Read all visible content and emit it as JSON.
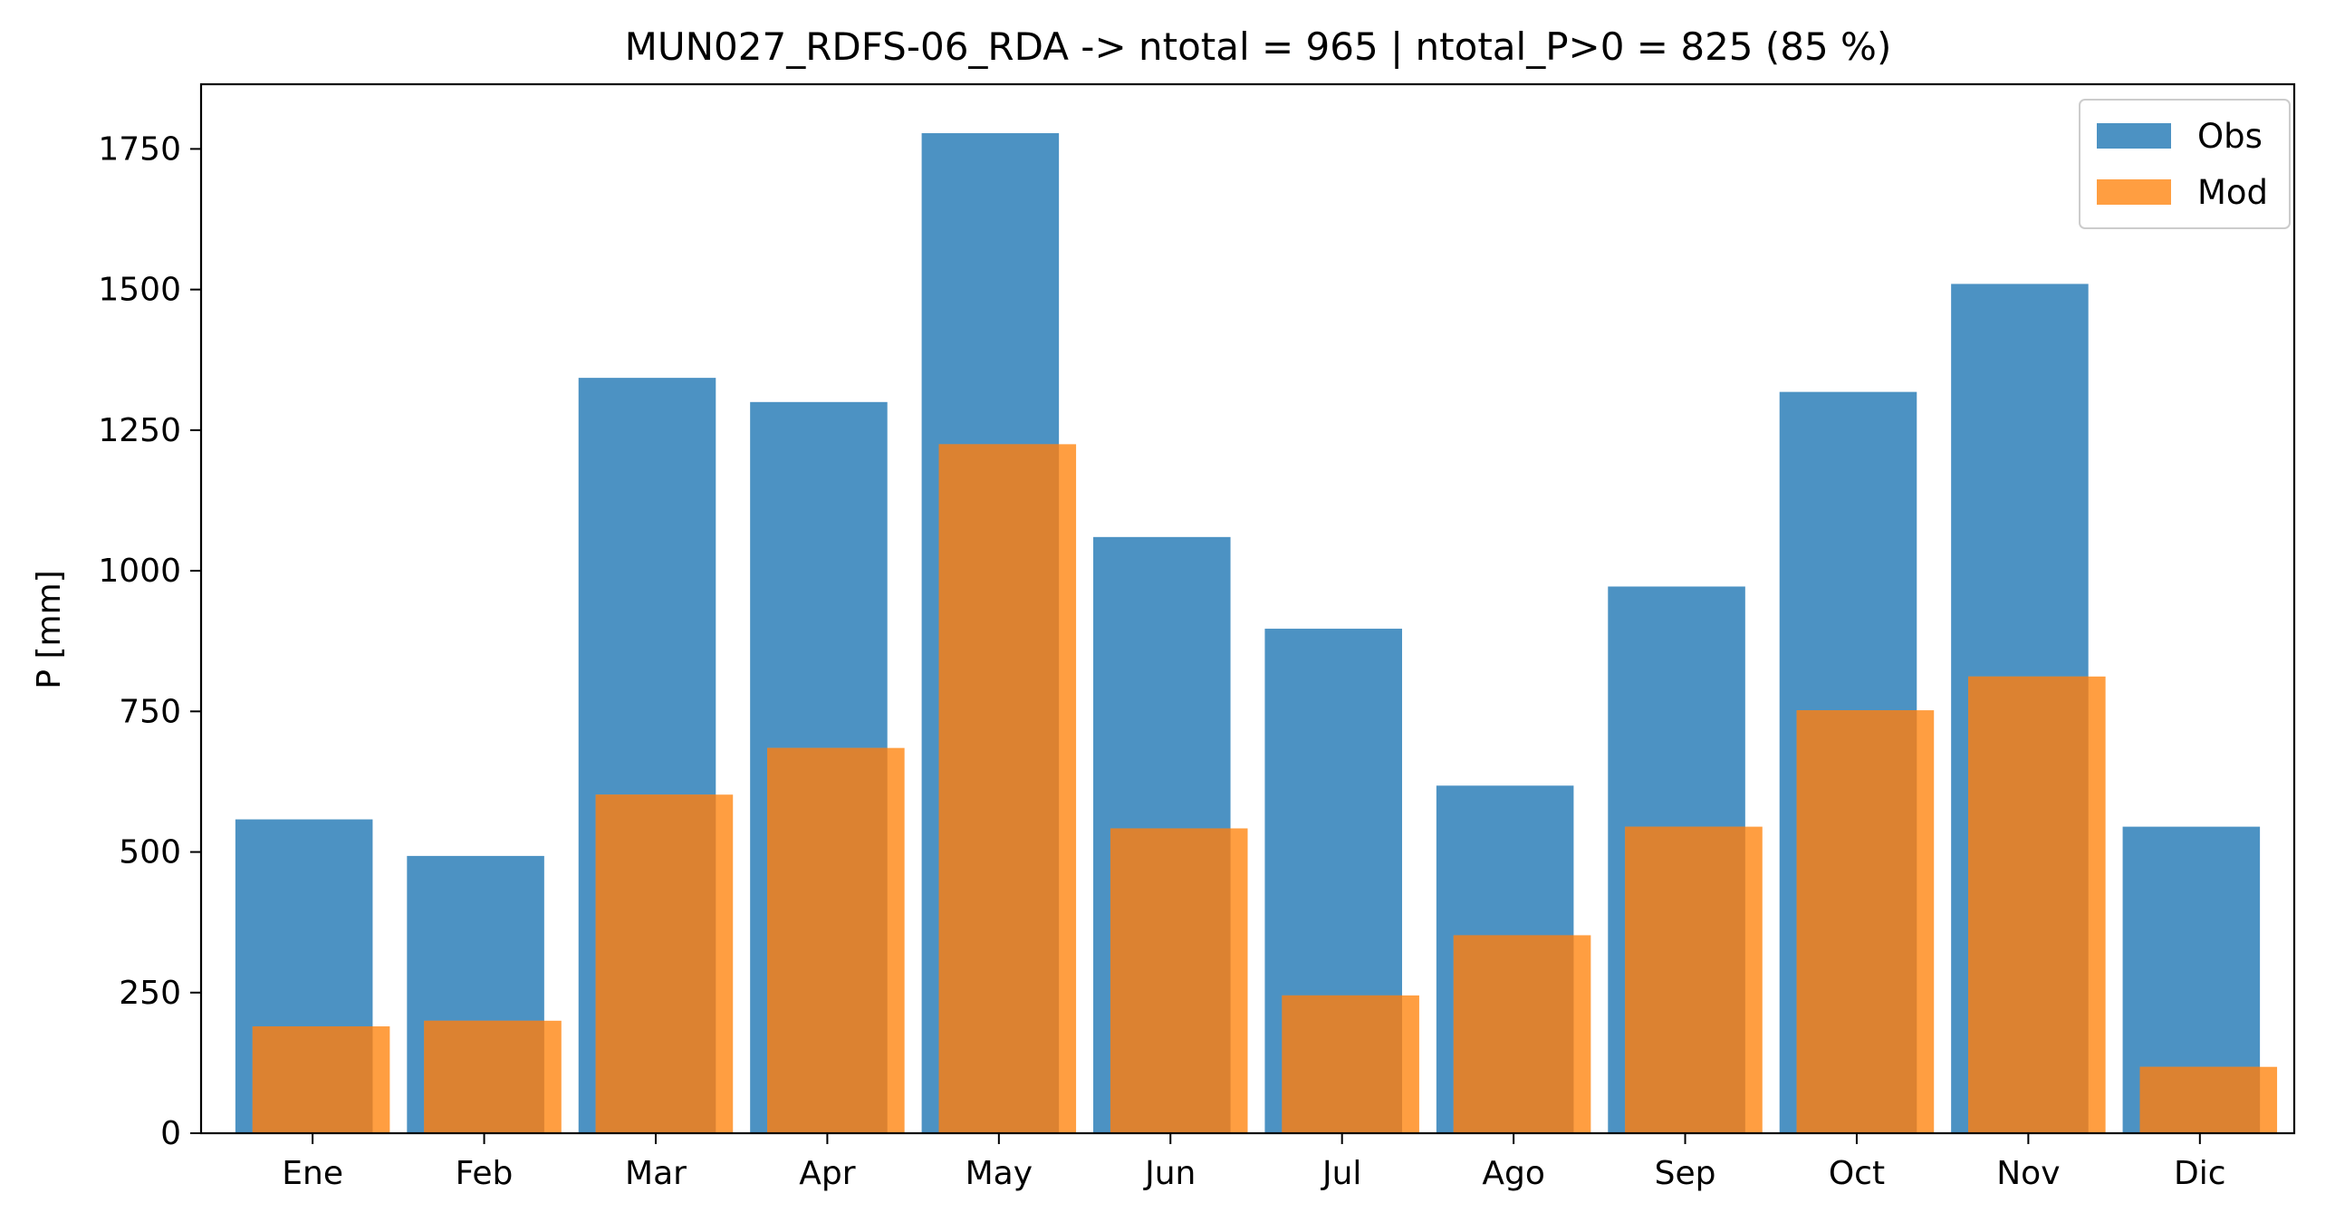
{
  "chart_data": {
    "type": "bar",
    "title": "MUN027_RDFS-06_RDA -> ntotal = 965 | ntotal_P>0 = 825 (85 %)",
    "xlabel": "",
    "ylabel": "P [mm]",
    "categories": [
      "Ene",
      "Feb",
      "Mar",
      "Apr",
      "May",
      "Jun",
      "Jul",
      "Ago",
      "Sep",
      "Oct",
      "Nov",
      "Dic"
    ],
    "series": [
      {
        "name": "Obs",
        "color": "#4c92c3",
        "values": [
          558,
          493,
          1343,
          1300,
          1778,
          1060,
          897,
          618,
          972,
          1318,
          1510,
          545
        ]
      },
      {
        "name": "Mod",
        "color": "#ff9835",
        "values": [
          190,
          200,
          602,
          685,
          1225,
          542,
          245,
          352,
          545,
          752,
          812,
          118
        ]
      }
    ],
    "overlap_color": "#dc8231",
    "ylim": [
      0,
      1865
    ],
    "yticks": [
      0,
      250,
      500,
      750,
      1000,
      1250,
      1500,
      1750
    ],
    "grid": false,
    "legend": "top-right"
  }
}
